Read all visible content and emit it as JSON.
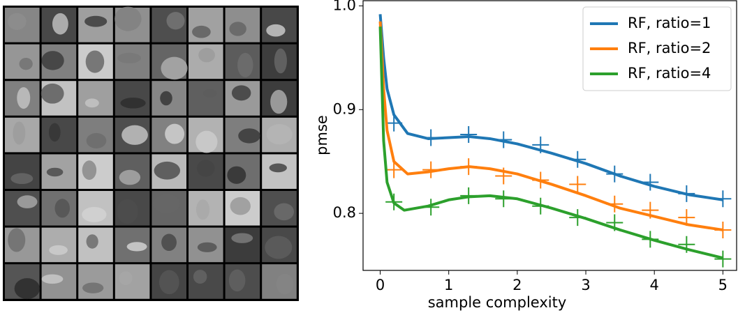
{
  "chart_data": {
    "type": "line",
    "xlabel": "sample complexity",
    "ylabel": "pmse",
    "xlim": [
      -0.25,
      5.2
    ],
    "ylim": [
      0.745,
      1.005
    ],
    "xticks": [
      0,
      1,
      2,
      3,
      4,
      5
    ],
    "yticks": [
      0.8,
      0.9,
      {
        "value": 1,
        "label": "1.0"
      }
    ],
    "legend": "upper right",
    "series": [
      {
        "name": "RF, ratio=1",
        "color": "#1f77b4",
        "x": [
          0,
          0.05,
          0.1,
          0.2,
          0.4,
          0.7,
          1.0,
          1.3,
          1.6,
          2.0,
          2.5,
          3.0,
          3.5,
          4.0,
          4.5,
          5.0
        ],
        "values": [
          0.992,
          0.95,
          0.92,
          0.895,
          0.877,
          0.872,
          0.873,
          0.874,
          0.872,
          0.867,
          0.858,
          0.848,
          0.836,
          0.826,
          0.818,
          0.813
        ],
        "points": {
          "x": [
            0.2,
            0.74,
            1.29,
            1.8,
            2.34,
            2.88,
            3.42,
            3.94,
            4.47,
            5.0
          ],
          "values": [
            0.887,
            0.873,
            0.876,
            0.871,
            0.866,
            0.852,
            0.838,
            0.83,
            0.819,
            0.814
          ]
        }
      },
      {
        "name": "RF, ratio=2",
        "color": "#ff7f0e",
        "x": [
          0,
          0.05,
          0.1,
          0.2,
          0.4,
          0.7,
          1.0,
          1.3,
          1.6,
          2.0,
          2.5,
          3.0,
          3.5,
          4.0,
          4.5,
          5.0
        ],
        "values": [
          0.985,
          0.92,
          0.88,
          0.85,
          0.838,
          0.84,
          0.843,
          0.845,
          0.843,
          0.838,
          0.828,
          0.817,
          0.805,
          0.797,
          0.789,
          0.784
        ],
        "points": {
          "x": [
            0.2,
            0.74,
            1.29,
            1.8,
            2.34,
            2.88,
            3.42,
            3.94,
            4.47,
            5.0
          ],
          "values": [
            0.842,
            0.842,
            0.845,
            0.836,
            0.832,
            0.828,
            0.809,
            0.803,
            0.796,
            0.784
          ]
        }
      },
      {
        "name": "RF, ratio=4",
        "color": "#2ca02c",
        "x": [
          0,
          0.05,
          0.1,
          0.2,
          0.35,
          0.7,
          1.0,
          1.3,
          1.6,
          2.0,
          2.5,
          3.0,
          3.5,
          4.0,
          4.5,
          5.0
        ],
        "values": [
          0.98,
          0.87,
          0.83,
          0.81,
          0.803,
          0.807,
          0.813,
          0.816,
          0.817,
          0.814,
          0.805,
          0.795,
          0.784,
          0.774,
          0.765,
          0.757
        ],
        "points": {
          "x": [
            0.2,
            0.74,
            1.29,
            1.8,
            2.34,
            2.88,
            3.42,
            3.94,
            4.47,
            5.0
          ],
          "values": [
            0.811,
            0.806,
            0.817,
            0.814,
            0.807,
            0.796,
            0.791,
            0.775,
            0.77,
            0.756
          ]
        }
      }
    ]
  }
}
